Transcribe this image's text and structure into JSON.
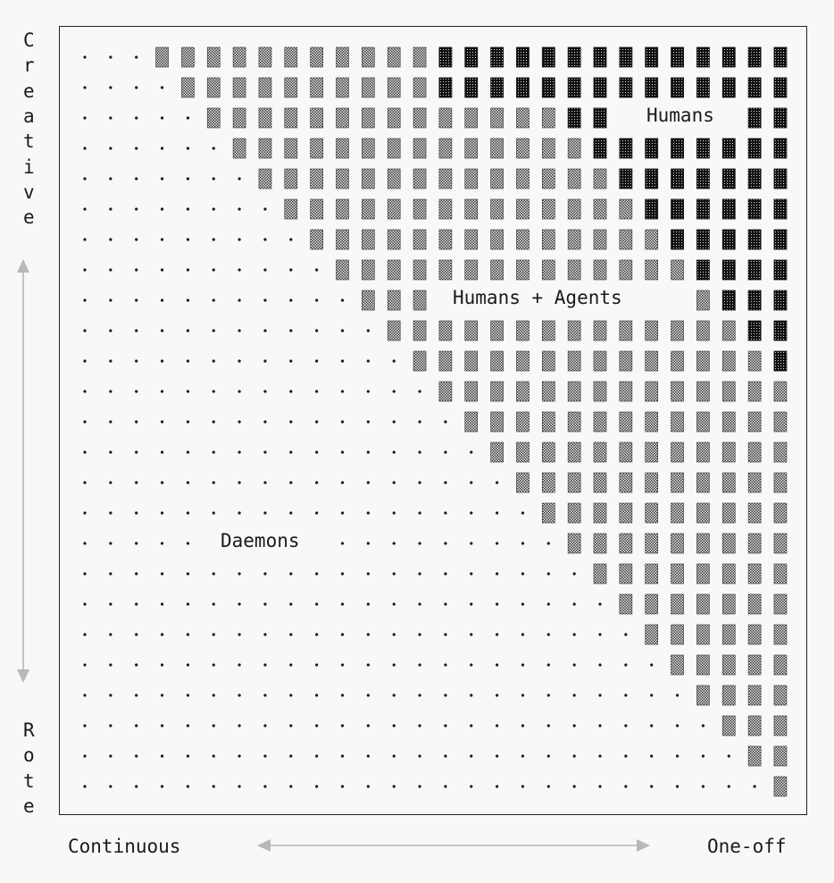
{
  "diagram": {
    "y_axis": {
      "top_label": "Creative",
      "bottom_label": "Rote"
    },
    "x_axis": {
      "left_label": "Continuous",
      "right_label": "One-off"
    },
    "regions": {
      "humans": "Humans",
      "humans_agents": "Humans + Agents",
      "daemons": "Daemons"
    },
    "grid": {
      "columns": 28,
      "rows": 25,
      "legend_glyphs": {
        "dot": "·",
        "medium": "▒",
        "dense": "▓"
      }
    },
    "colors": {
      "background": "#f8f8f6",
      "ink": "#1a1a1a",
      "arrow": "#b8b8b8"
    }
  }
}
